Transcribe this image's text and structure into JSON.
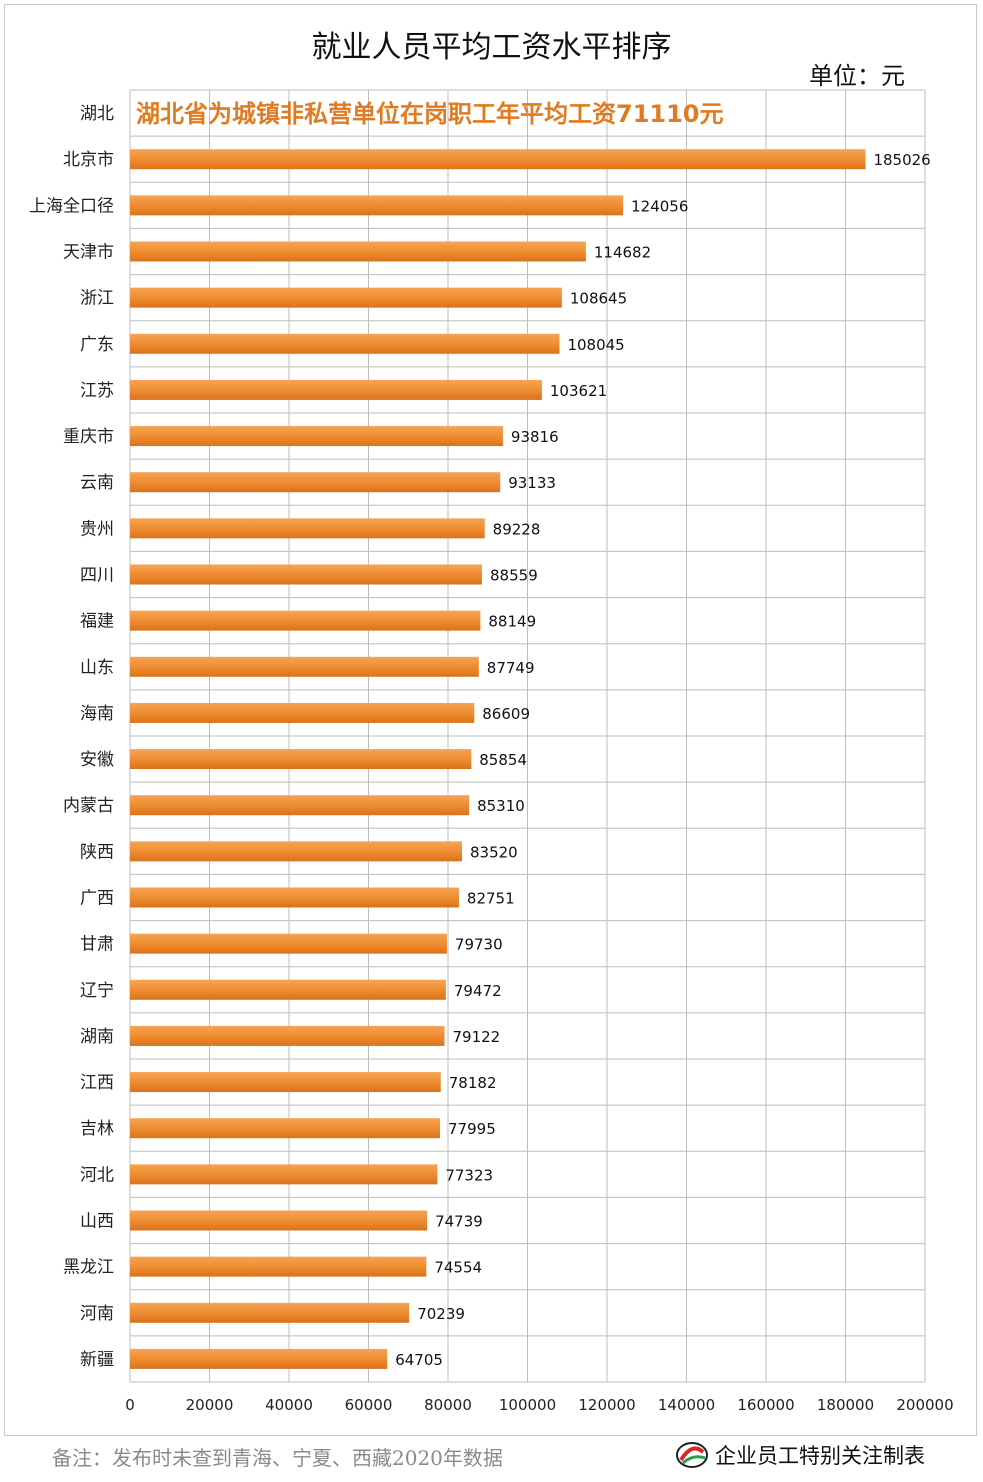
{
  "header": {
    "title": "就业人员平均工资水平排序",
    "unit": "单位：元"
  },
  "footer": {
    "note": "备注：发布时未查到青海、宁夏、西藏2020年数据",
    "brand": "企业员工特别关注制表"
  },
  "colors": {
    "bar": "#ee8a2e",
    "annotation": "#e07b22",
    "grid": "#bdbdbd"
  },
  "chart_data": {
    "type": "bar",
    "orientation": "horizontal",
    "title": "就业人员平均工资水平排序",
    "xlabel": "",
    "ylabel": "",
    "xlim": [
      0,
      200000
    ],
    "x_ticks": [
      0,
      20000,
      40000,
      60000,
      80000,
      100000,
      120000,
      140000,
      160000,
      180000,
      200000
    ],
    "grid": true,
    "annotation": {
      "category": "湖北",
      "text": "湖北省为城镇非私营单位在岗职工年平均工资71110元"
    },
    "categories": [
      "湖北",
      "北京市",
      "上海全口径",
      "天津市",
      "浙江",
      "广东",
      "江苏",
      "重庆市",
      "云南",
      "贵州",
      "四川",
      "福建",
      "山东",
      "海南",
      "安徽",
      "内蒙古",
      "陕西",
      "广西",
      "甘肃",
      "辽宁",
      "湖南",
      "江西",
      "吉林",
      "河北",
      "山西",
      "黑龙江",
      "河南",
      "新疆"
    ],
    "values": [
      null,
      185026,
      124056,
      114682,
      108645,
      108045,
      103621,
      93816,
      93133,
      89228,
      88559,
      88149,
      87749,
      86609,
      85854,
      85310,
      83520,
      82751,
      79730,
      79472,
      79122,
      78182,
      77995,
      77323,
      74739,
      74554,
      70239,
      64705
    ]
  }
}
